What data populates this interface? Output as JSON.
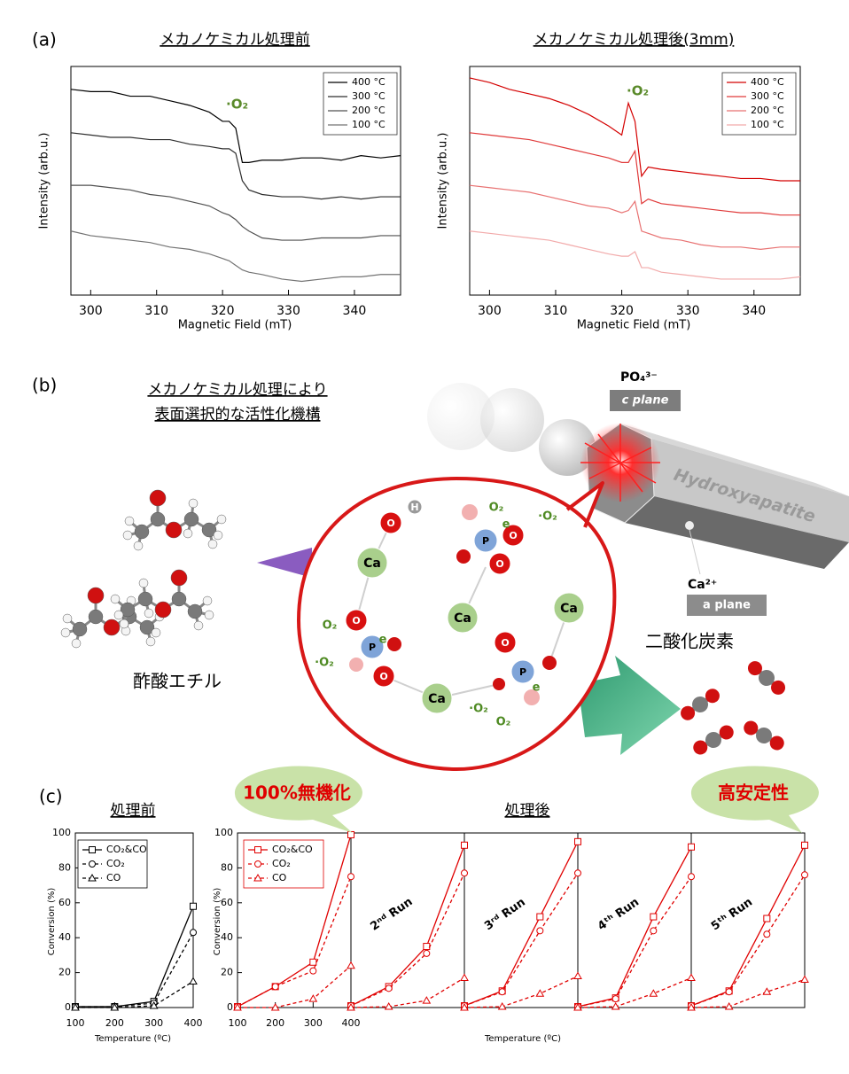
{
  "panel_labels": [
    "(a)",
    "(b)",
    "(c)"
  ],
  "chart_data": [
    {
      "type": "line",
      "title": "メカノケミカル処理前",
      "x_label": "Magnetic Field (mT)",
      "y_label": "Intensity (arb.u.)",
      "annotation": "·O₂",
      "annotation_color": "#5a8a2a",
      "x": [
        297,
        300,
        303,
        306,
        309,
        312,
        315,
        318,
        320,
        321,
        322,
        323,
        324,
        326,
        329,
        332,
        335,
        338,
        341,
        344,
        347
      ],
      "xlim": [
        297,
        347
      ],
      "xticks": [
        300,
        310,
        320,
        330,
        340
      ],
      "ylim": [
        0,
        10
      ],
      "legend": "upper right",
      "series": [
        {
          "name": "400 °C",
          "color": "#000000",
          "values": [
            9.0,
            8.9,
            8.9,
            8.7,
            8.7,
            8.5,
            8.3,
            8.0,
            7.6,
            7.6,
            7.3,
            5.8,
            5.8,
            5.9,
            5.9,
            6.0,
            6.0,
            5.9,
            6.1,
            6.0,
            6.1
          ]
        },
        {
          "name": "300 °C",
          "color": "#2e2e2e",
          "values": [
            7.1,
            7.0,
            6.9,
            6.9,
            6.8,
            6.8,
            6.6,
            6.5,
            6.4,
            6.4,
            6.2,
            5.0,
            4.6,
            4.4,
            4.3,
            4.3,
            4.2,
            4.3,
            4.2,
            4.3,
            4.3
          ]
        },
        {
          "name": "200 °C",
          "color": "#505050",
          "values": [
            4.8,
            4.8,
            4.7,
            4.6,
            4.4,
            4.3,
            4.1,
            3.9,
            3.6,
            3.5,
            3.3,
            3.0,
            2.8,
            2.5,
            2.4,
            2.4,
            2.5,
            2.5,
            2.5,
            2.6,
            2.6
          ]
        },
        {
          "name": "100 °C",
          "color": "#737373",
          "values": [
            2.8,
            2.6,
            2.5,
            2.4,
            2.3,
            2.1,
            2.0,
            1.8,
            1.6,
            1.5,
            1.3,
            1.1,
            1.0,
            0.9,
            0.7,
            0.6,
            0.7,
            0.8,
            0.8,
            0.9,
            0.9
          ]
        }
      ]
    },
    {
      "type": "line",
      "title": "メカノケミカル処理後(3mm)",
      "x_label": "Magnetic Field (mT)",
      "y_label": "Intensity (arb.u.)",
      "annotation": "·O₂",
      "annotation_color": "#5a8a2a",
      "x": [
        297,
        300,
        303,
        306,
        309,
        312,
        315,
        318,
        320,
        321,
        322,
        323,
        324,
        326,
        329,
        332,
        335,
        338,
        341,
        344,
        347
      ],
      "xlim": [
        297,
        347
      ],
      "xticks": [
        300,
        310,
        320,
        330,
        340
      ],
      "ylim": [
        0,
        10
      ],
      "legend": "upper right",
      "series": [
        {
          "name": "400 °C",
          "color": "#d40000",
          "values": [
            9.5,
            9.3,
            9.0,
            8.8,
            8.6,
            8.3,
            7.9,
            7.4,
            7.0,
            8.4,
            7.6,
            5.2,
            5.6,
            5.5,
            5.4,
            5.3,
            5.2,
            5.1,
            5.1,
            5.0,
            5.0
          ]
        },
        {
          "name": "300 °C",
          "color": "#e03a3a",
          "values": [
            7.1,
            7.0,
            6.9,
            6.8,
            6.6,
            6.4,
            6.2,
            6.0,
            5.8,
            5.8,
            6.3,
            4.0,
            4.2,
            4.0,
            3.9,
            3.8,
            3.7,
            3.6,
            3.6,
            3.5,
            3.5
          ]
        },
        {
          "name": "200 °C",
          "color": "#e87272",
          "values": [
            4.8,
            4.7,
            4.6,
            4.5,
            4.3,
            4.1,
            3.9,
            3.8,
            3.6,
            3.7,
            4.1,
            2.8,
            2.7,
            2.5,
            2.4,
            2.2,
            2.1,
            2.1,
            2.0,
            2.1,
            2.1
          ]
        },
        {
          "name": "100 °C",
          "color": "#f2aaaa",
          "values": [
            2.8,
            2.7,
            2.6,
            2.5,
            2.4,
            2.2,
            2.0,
            1.8,
            1.7,
            1.7,
            1.9,
            1.2,
            1.2,
            1.0,
            0.9,
            0.8,
            0.7,
            0.7,
            0.7,
            0.7,
            0.8
          ]
        }
      ]
    },
    {
      "type": "line",
      "title": "処理前",
      "x_label": "Temperature (ºC)",
      "y_label": "Conversion (%)",
      "x": [
        100,
        200,
        300,
        400
      ],
      "xlim": [
        100,
        400
      ],
      "xticks": [
        100,
        200,
        300,
        400
      ],
      "ylim": [
        0,
        100
      ],
      "yticks": [
        0,
        20,
        40,
        60,
        80,
        100
      ],
      "legend": "upper left",
      "color": "#000000",
      "series": [
        {
          "name": "CO₂&CO",
          "marker": "square",
          "dash": "solid",
          "values": [
            0.5,
            0.5,
            3.5,
            58
          ]
        },
        {
          "name": "CO₂",
          "marker": "circle",
          "dash": "dashed",
          "values": [
            0.5,
            0.5,
            2.5,
            43
          ]
        },
        {
          "name": "CO",
          "marker": "triangle",
          "dash": "dashed",
          "values": [
            0,
            0,
            1,
            15
          ]
        }
      ]
    },
    {
      "type": "line",
      "title": "処理後",
      "x_label": "Temperature (ºC)",
      "y_label": "Conversion (%)",
      "callouts": [
        "100%無機化",
        "高安定性"
      ],
      "x": [
        100,
        200,
        300,
        400
      ],
      "xlim": [
        100,
        400
      ],
      "xticks": [
        100,
        200,
        300,
        400
      ],
      "ylim": [
        0,
        100
      ],
      "yticks": [
        0,
        20,
        40,
        60,
        80,
        100
      ],
      "legend": "upper left",
      "color": "#e00000",
      "series_style": [
        {
          "name": "CO₂&CO",
          "marker": "square",
          "dash": "solid"
        },
        {
          "name": "CO₂",
          "marker": "circle",
          "dash": "dashed"
        },
        {
          "name": "CO",
          "marker": "triangle",
          "dash": "dashed"
        }
      ],
      "runs": [
        {
          "values": [
            [
              0.5,
              12,
              26,
              99
            ],
            [
              0.5,
              12,
              21,
              75
            ],
            [
              0,
              0,
              5,
              24
            ]
          ]
        },
        {
          "label": "2ⁿᵈ Run",
          "values": [
            [
              1,
              12,
              35,
              93
            ],
            [
              1,
              11,
              31,
              77
            ],
            [
              0,
              0.5,
              4,
              17
            ]
          ]
        },
        {
          "label": "3ʳᵈ Run",
          "values": [
            [
              1,
              9.5,
              52,
              95
            ],
            [
              1,
              9,
              44,
              77
            ],
            [
              0,
              0.5,
              8,
              18
            ]
          ]
        },
        {
          "label": "4ᵗʰ Run",
          "values": [
            [
              0.5,
              5.5,
              52,
              92
            ],
            [
              0.5,
              5,
              44,
              75
            ],
            [
              0,
              0.5,
              8,
              17
            ]
          ]
        },
        {
          "label": "5ᵗʰ Run",
          "values": [
            [
              1,
              9.5,
              51,
              93
            ],
            [
              1,
              9,
              42,
              76
            ],
            [
              0,
              0.5,
              9,
              16
            ]
          ]
        }
      ]
    }
  ],
  "diagram": {
    "title_lines": [
      "メカノケミカル処理により",
      "表面選択的な活性化機構"
    ],
    "po4": "PO₄³⁻",
    "c_plane": "c plane",
    "crystal": "Hydroxyapatite",
    "ca": "Ca²⁺",
    "a_plane": "a plane",
    "reactant": "酢酸エチル",
    "product": "二酸化炭素",
    "atoms": [
      "O",
      "H",
      "Ca",
      "O",
      "P",
      "O",
      "Ca",
      "Ca",
      "Ca",
      "P",
      "O",
      "O",
      "P",
      "O"
    ],
    "species": [
      "O₂",
      "·O₂",
      "e",
      "O₂",
      "·O₂",
      "e",
      "·O₂",
      "O₂",
      "e"
    ]
  }
}
